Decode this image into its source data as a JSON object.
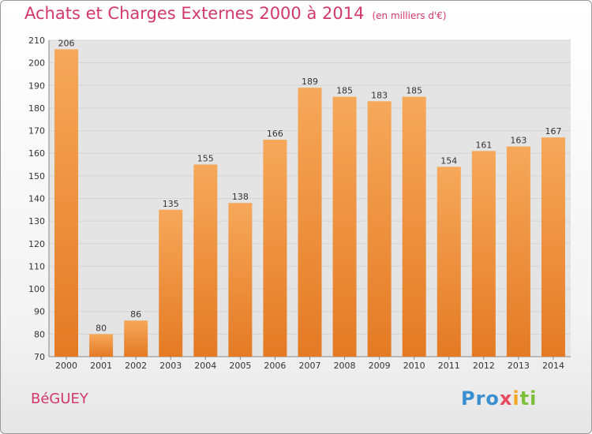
{
  "header": {
    "title": "Achats et Charges Externes 2000 à 2014",
    "subtitle": "(en milliers d'€)"
  },
  "footer": {
    "commune": "BéGUEY",
    "brand": "Proxiti"
  },
  "colors": {
    "title": "#d3386c",
    "bar_top": "#f6a85a",
    "bar_bottom": "#e47a24",
    "grid": "#d4d4d4",
    "plot_bg": "#e4e4e4"
  },
  "chart_data": {
    "type": "bar",
    "categories": [
      "2000",
      "2001",
      "2002",
      "2003",
      "2004",
      "2005",
      "2006",
      "2007",
      "2008",
      "2009",
      "2010",
      "2011",
      "2012",
      "2013",
      "2014"
    ],
    "values": [
      206,
      80,
      86,
      135,
      155,
      138,
      166,
      189,
      185,
      183,
      185,
      154,
      161,
      163,
      167
    ],
    "ylim": [
      70,
      210
    ],
    "yticks": [
      70,
      80,
      90,
      100,
      110,
      120,
      130,
      140,
      150,
      160,
      170,
      180,
      190,
      200,
      210
    ],
    "grid": true,
    "data_labels": true
  }
}
